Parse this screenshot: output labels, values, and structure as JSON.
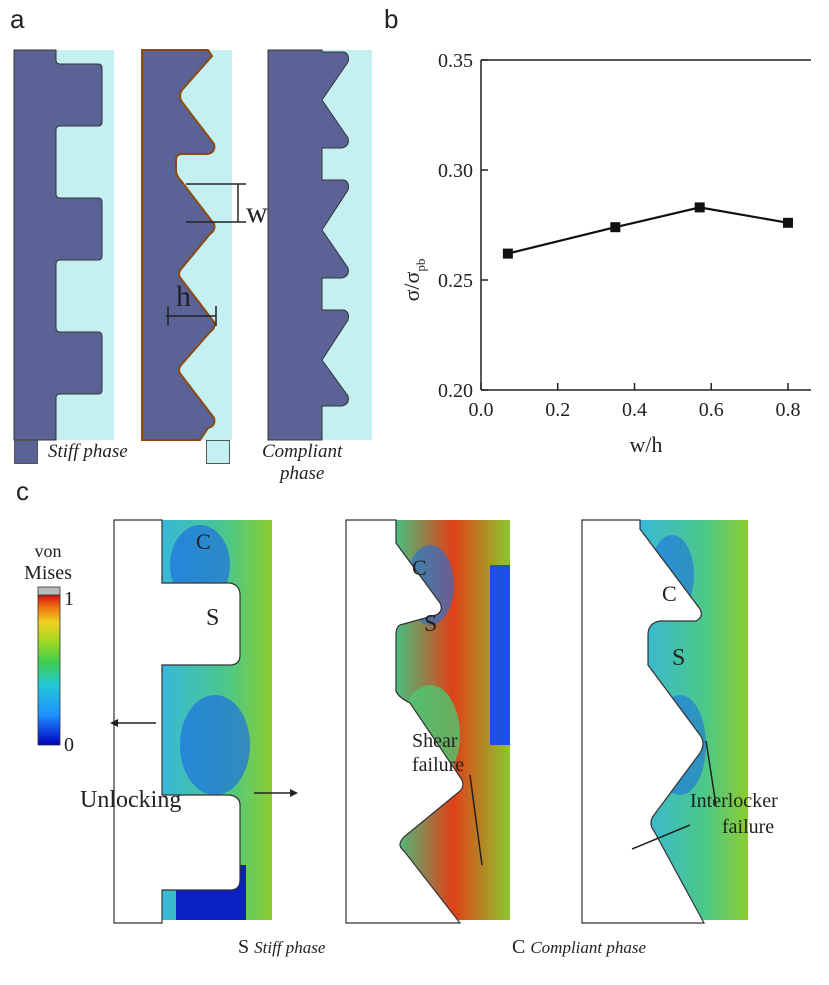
{
  "panels": {
    "a": "a",
    "b": "b",
    "c": "c"
  },
  "panel_a": {
    "dim_w": "w",
    "dim_h": "h",
    "legend": {
      "stiff": "Stiff phase",
      "compliant_line1": "Compliant",
      "compliant_line2": "phase"
    },
    "colors": {
      "stiff": "#5b6396",
      "compliant": "#c4f0f2"
    }
  },
  "chart_data": {
    "type": "line",
    "x": [
      0.07,
      0.35,
      0.57,
      0.8
    ],
    "y": [
      0.262,
      0.274,
      0.283,
      0.276
    ],
    "xlabel": "w/h",
    "ylabel": "σ/σpb",
    "ylabel_main": "σ/σ",
    "ylabel_sub": "pb",
    "xlim": [
      0.0,
      0.86
    ],
    "ylim": [
      0.2,
      0.35
    ],
    "xticks": [
      "0.0",
      "0.2",
      "0.4",
      "0.6",
      "0.8"
    ],
    "yticks": [
      "0.20",
      "0.25",
      "0.30",
      "0.35"
    ],
    "marker": "square"
  },
  "panel_c": {
    "colorbar": {
      "title1": "von",
      "title2": "Mises",
      "max": "1",
      "min": "0"
    },
    "labels": {
      "c": "C",
      "s": "S",
      "unlocking": "Unlocking",
      "shear1": "Shear",
      "shear2": "failure",
      "inter1": "Interlocker",
      "inter2": "failure"
    },
    "bottom": {
      "s_letter": "S",
      "s_text": "Stiff phase",
      "c_letter": "C",
      "c_text": "Compliant phase"
    }
  }
}
